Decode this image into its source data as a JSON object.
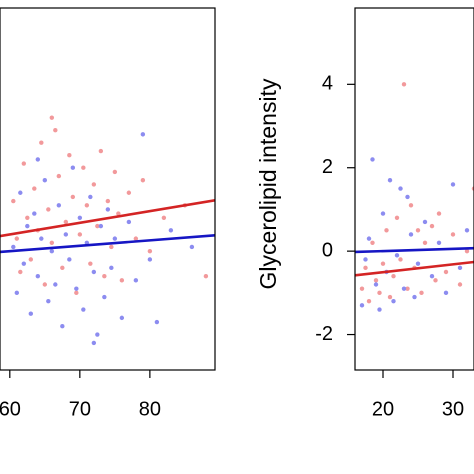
{
  "chart_data": [
    {
      "type": "scatter",
      "xlim": [
        58.6,
        89.3
      ],
      "ylim": [
        -2.85,
        5.83
      ],
      "xticks": [
        60,
        70,
        80
      ],
      "series": [
        {
          "color": "#f2999b",
          "x": [
            60.5,
            61,
            61.5,
            62,
            62.5,
            63,
            63.5,
            64,
            64.5,
            65,
            65.5,
            66,
            66.5,
            67,
            67.5,
            68,
            68.5,
            69,
            69.5,
            70,
            70.5,
            71,
            71.5,
            72,
            72.5,
            73,
            73.5,
            74,
            74.5,
            75,
            75.5,
            76,
            77,
            78,
            79,
            80,
            82,
            85,
            88,
            66
          ],
          "values": [
            1.2,
            0.3,
            -0.5,
            2.1,
            0.8,
            -0.2,
            1.5,
            0.5,
            2.6,
            -0.8,
            1.0,
            0.2,
            2.9,
            1.8,
            -0.4,
            0.7,
            2.3,
            1.3,
            -1.0,
            0.4,
            2.0,
            1.1,
            -0.3,
            1.6,
            0.6,
            2.4,
            -0.6,
            1.2,
            0.1,
            1.9,
            0.9,
            -0.7,
            1.4,
            0.3,
            1.7,
            0.0,
            0.8,
            1.1,
            -0.6,
            3.2
          ]
        },
        {
          "color": "#8c8cf0",
          "x": [
            60.5,
            61,
            61.5,
            62,
            62.5,
            63,
            63.5,
            64,
            64.5,
            65,
            65.5,
            66,
            66.5,
            67,
            67.5,
            68,
            68.5,
            69,
            69.5,
            70,
            70.5,
            71,
            71.5,
            72,
            72.5,
            73,
            73.5,
            74,
            74.5,
            75,
            76,
            77,
            78,
            79,
            80,
            81,
            83,
            86,
            72,
            64
          ],
          "values": [
            0.1,
            -1.0,
            1.4,
            -0.3,
            0.6,
            -1.5,
            0.9,
            -0.6,
            0.3,
            1.7,
            -1.2,
            0.0,
            -0.8,
            1.1,
            -1.8,
            0.4,
            -0.2,
            2.0,
            -0.9,
            0.8,
            -1.4,
            0.2,
            1.3,
            -0.5,
            -2.0,
            0.6,
            -1.1,
            1.0,
            -0.4,
            0.3,
            -1.6,
            0.7,
            -0.7,
            2.8,
            -0.2,
            -1.7,
            0.5,
            0.1,
            -2.2,
            2.2
          ]
        }
      ],
      "fits": [
        {
          "color": "#d42424",
          "x": [
            58.6,
            89.3
          ],
          "values": [
            0.36,
            1.22
          ]
        },
        {
          "color": "#1616c4",
          "x": [
            58.6,
            89.3
          ],
          "values": [
            -0.02,
            0.38
          ]
        }
      ]
    },
    {
      "type": "scatter",
      "ylabel": "Glycerolipid intensity",
      "xlim": [
        16,
        33
      ],
      "ylim": [
        -2.85,
        5.83
      ],
      "xticks": [
        20,
        30
      ],
      "yticks": [
        -2,
        0,
        2,
        4
      ],
      "series": [
        {
          "color": "#f2999b",
          "x": [
            17,
            17.5,
            18,
            18.5,
            19,
            19.5,
            20,
            20.5,
            21,
            21.5,
            22,
            22.5,
            23,
            23.5,
            24,
            24.5,
            25,
            25.5,
            26,
            27,
            27.5,
            28,
            29,
            30,
            31,
            32,
            33
          ],
          "values": [
            -0.9,
            -0.4,
            -1.2,
            0.2,
            -0.7,
            -1.0,
            -0.3,
            0.5,
            -1.1,
            -0.6,
            0.8,
            -0.2,
            4.0,
            -0.9,
            1.1,
            -0.4,
            0.5,
            -1.0,
            0.2,
            0.6,
            -0.7,
            0.9,
            -0.5,
            0.4,
            -0.8,
            0.0,
            1.5
          ]
        },
        {
          "color": "#8c8cf0",
          "x": [
            17,
            17.5,
            18,
            18.5,
            19,
            19.5,
            20,
            20.5,
            21,
            21.5,
            22,
            22.5,
            23,
            23.5,
            24,
            24.5,
            25,
            26,
            27,
            28,
            29,
            30,
            31,
            32
          ],
          "values": [
            -1.3,
            -0.2,
            0.3,
            2.2,
            -0.8,
            -1.4,
            0.9,
            -0.5,
            1.7,
            -1.2,
            -0.1,
            1.5,
            -0.9,
            1.3,
            0.4,
            -1.1,
            -0.3,
            0.7,
            -0.6,
            0.2,
            -1.0,
            1.6,
            -0.4,
            0.5
          ]
        }
      ],
      "fits": [
        {
          "color": "#d42424",
          "x": [
            16,
            33
          ],
          "values": [
            -0.58,
            -0.26
          ]
        },
        {
          "color": "#1616c4",
          "x": [
            16,
            33
          ],
          "values": [
            -0.02,
            0.07
          ]
        }
      ]
    }
  ]
}
